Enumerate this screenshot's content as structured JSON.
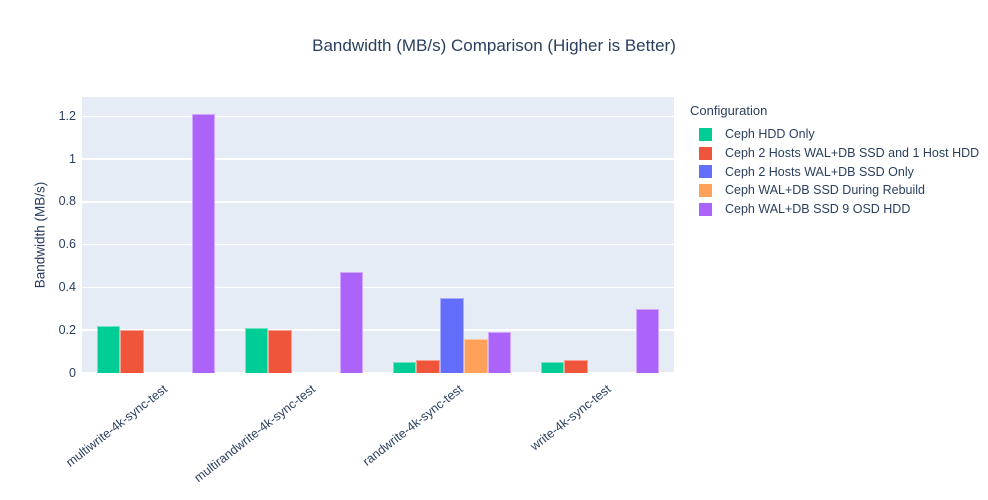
{
  "chart_data": {
    "type": "bar",
    "title": "Bandwidth (MB/s) Comparison (Higher is Better)",
    "xlabel": "",
    "ylabel": "Bandwidth (MB/s)",
    "legend_title": "Configuration",
    "legend_position": "right",
    "grid": true,
    "categories": [
      "multiwrite-4k-sync-test",
      "multirandwrite-4k-sync-test",
      "randwrite-4k-sync-test",
      "write-4k-sync-test"
    ],
    "series": [
      {
        "name": "Ceph HDD Only",
        "color": "#00CC96",
        "values": [
          0.22,
          0.21,
          0.05,
          0.05
        ]
      },
      {
        "name": "Ceph 2 Hosts WAL+DB SSD and 1 Host HDD",
        "color": "#EF553B",
        "values": [
          0.2,
          0.2,
          0.06,
          0.06
        ]
      },
      {
        "name": "Ceph 2 Hosts WAL+DB SSD Only",
        "color": "#636EFA",
        "values": [
          null,
          null,
          0.35,
          null
        ]
      },
      {
        "name": "Ceph WAL+DB SSD During Rebuild",
        "color": "#FFA15A",
        "values": [
          null,
          null,
          0.16,
          null
        ]
      },
      {
        "name": "Ceph WAL+DB SSD 9 OSD HDD",
        "color": "#AB63FA",
        "values": [
          1.21,
          0.47,
          0.19,
          0.3
        ]
      }
    ],
    "yticks": [
      {
        "v": 0,
        "label": "0"
      },
      {
        "v": 0.2,
        "label": "0.2"
      },
      {
        "v": 0.4,
        "label": "0.4"
      },
      {
        "v": 0.6,
        "label": "0.6"
      },
      {
        "v": 0.8,
        "label": "0.8"
      },
      {
        "v": 1,
        "label": "1"
      },
      {
        "v": 1.2,
        "label": "1.2"
      }
    ],
    "ylim": [
      0,
      1.29
    ],
    "colors": {
      "plot_bg": "#E5ECF6",
      "grid": "#FFFFFF",
      "text": "#2a3f5f",
      "paper_bg": "#FFFFFF"
    }
  }
}
